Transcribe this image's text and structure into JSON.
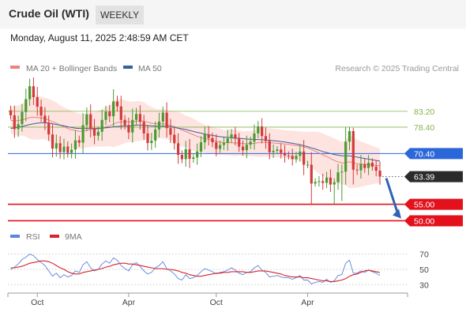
{
  "header": {
    "title": "Crude Oil (WTI)",
    "timeframe": "WEEKLY",
    "timestamp": "Monday, August 11, 2025 2:48:59 AM CET"
  },
  "colors": {
    "bullish": "#4a9a33",
    "bearish": "#d23a3a",
    "band_fill": "#fde4e0",
    "ma20": "#f08080",
    "ma50": "#3a5f9e",
    "current_line": "#2b67d9",
    "support": "#e3111b",
    "resistance": "#86b24a",
    "arrow": "#2f64b5",
    "rsi": "#5b84e0",
    "rsi_ma": "#d6252b"
  },
  "chart_data": [
    {
      "type": "candlestick",
      "title": "Crude Oil (WTI)",
      "timeframe": "WEEKLY",
      "credit": "Research © 2025 Trading Central",
      "x_tick_labels": [
        "Oct",
        "Apr",
        "Oct",
        "Apr"
      ],
      "y_range": [
        47,
        93
      ],
      "legend": [
        {
          "label": "MA 20 + Bollinger Bands",
          "color": "#f08080"
        },
        {
          "label": "MA 50",
          "color": "#3a5f9e"
        }
      ],
      "levels": [
        {
          "label": "83.20",
          "value": 83.2,
          "kind": "resistance"
        },
        {
          "label": "78.40",
          "value": 78.4,
          "kind": "resistance"
        },
        {
          "label": "70.40",
          "value": 70.4,
          "kind": "pivot"
        },
        {
          "label": "63.39",
          "value": 63.39,
          "kind": "current"
        },
        {
          "label": "55.00",
          "value": 55.0,
          "kind": "support"
        },
        {
          "label": "50.00",
          "value": 50.0,
          "kind": "support"
        }
      ],
      "close": [
        82.0,
        77.8,
        79.3,
        83.0,
        86.9,
        90.8,
        87.5,
        84.6,
        81.9,
        79.8,
        76.2,
        71.9,
        73.5,
        70.8,
        72.5,
        70.6,
        71.6,
        74.4,
        73.7,
        79.0,
        82.3,
        78.0,
        75.8,
        77.0,
        80.6,
        83.1,
        81.7,
        86.2,
        84.7,
        80.6,
        79.0,
        76.8,
        80.6,
        82.4,
        80.0,
        76.5,
        73.6,
        74.3,
        77.7,
        80.1,
        82.8,
        78.1,
        76.1,
        73.5,
        70.0,
        68.7,
        71.7,
        68.8,
        69.2,
        71.0,
        73.8,
        76.2,
        75.1,
        73.8,
        71.8,
        73.0,
        73.6,
        75.0,
        76.2,
        74.9,
        72.5,
        71.4,
        73.1,
        74.0,
        76.5,
        78.6,
        75.7,
        74.2,
        70.8,
        71.2,
        71.6,
        70.6,
        69.8,
        69.7,
        68.7,
        69.7,
        71.0,
        67.0,
        67.0,
        61.3,
        61.8,
        62.0,
        61.5,
        63.1,
        61.0,
        61.7,
        64.7,
        64.9,
        74.0,
        77.2,
        65.5,
        65.3,
        67.2,
        66.0,
        67.6,
        66.4,
        65.2,
        63.4
      ],
      "ma20": [
        80.5,
        80.3,
        80.4,
        80.6,
        80.9,
        81.3,
        81.4,
        81.3,
        81.2,
        81.0,
        80.6,
        80.0,
        79.6,
        79.0,
        78.5,
        78.0,
        77.6,
        77.4,
        77.1,
        77.2,
        77.4,
        77.6,
        77.7,
        77.9,
        78.2,
        78.5,
        78.8,
        79.3,
        79.8,
        80.0,
        80.1,
        80.0,
        80.0,
        80.2,
        80.3,
        80.2,
        79.9,
        79.6,
        79.4,
        79.4,
        79.4,
        79.2,
        78.9,
        78.6,
        78.1,
        77.5,
        77.1,
        76.6,
        76.1,
        75.6,
        75.2,
        74.9,
        74.7,
        74.4,
        74.1,
        73.9,
        73.7,
        73.7,
        73.7,
        73.6,
        73.5,
        73.4,
        73.4,
        73.4,
        73.5,
        73.7,
        73.8,
        73.8,
        73.7,
        73.6,
        73.5,
        73.4,
        73.3,
        73.2,
        73.0,
        72.8,
        72.7,
        72.4,
        72.1,
        71.6,
        71.1,
        70.6,
        70.0,
        69.5,
        68.9,
        68.3,
        67.9,
        67.5,
        67.6,
        67.9,
        67.6,
        67.3,
        67.2,
        67.1,
        67.0,
        66.9,
        66.8,
        66.7
      ],
      "ma50": [
        78.0,
        78.2,
        78.4,
        78.6,
        78.9,
        79.2,
        79.4,
        79.6,
        79.7,
        79.7,
        79.6,
        79.4,
        79.2,
        79.0,
        78.8,
        78.5,
        78.3,
        78.1,
        78.0,
        78.0,
        78.0,
        78.0,
        78.0,
        78.0,
        78.1,
        78.2,
        78.3,
        78.5,
        78.6,
        78.7,
        78.8,
        78.8,
        78.9,
        79.0,
        79.0,
        79.0,
        78.9,
        78.8,
        78.7,
        78.7,
        78.7,
        78.6,
        78.5,
        78.3,
        78.1,
        77.9,
        77.7,
        77.4,
        77.1,
        76.8,
        76.6,
        76.3,
        76.1,
        75.9,
        75.7,
        75.5,
        75.4,
        75.3,
        75.2,
        75.1,
        75.0,
        74.9,
        74.8,
        74.7,
        74.7,
        74.6,
        74.6,
        74.5,
        74.4,
        74.3,
        74.2,
        74.0,
        73.9,
        73.7,
        73.5,
        73.3,
        73.1,
        72.8,
        72.5,
        72.1,
        71.8,
        71.4,
        71.0,
        70.7,
        70.4,
        70.1,
        69.9,
        69.7,
        69.7,
        69.7,
        69.5,
        69.3,
        69.1,
        68.9,
        68.7,
        68.5,
        68.3,
        68.1
      ],
      "upper_band": [
        84.5,
        84.6,
        85.0,
        85.4,
        86.3,
        87.8,
        88.2,
        88.0,
        87.6,
        87.3,
        87.0,
        86.5,
        85.9,
        85.0,
        84.4,
        83.9,
        83.4,
        82.9,
        82.5,
        82.4,
        82.6,
        82.8,
        82.9,
        83.3,
        83.9,
        84.5,
        85.0,
        86.3,
        86.9,
        86.9,
        86.6,
        86.2,
        86.1,
        86.3,
        86.3,
        86.0,
        85.2,
        84.5,
        84.0,
        83.8,
        83.8,
        83.6,
        83.4,
        83.2,
        83.0,
        82.5,
        81.9,
        81.5,
        81.0,
        80.3,
        79.6,
        79.1,
        78.9,
        78.5,
        78.1,
        77.9,
        77.5,
        77.5,
        77.7,
        77.6,
        77.3,
        77.1,
        77.2,
        77.2,
        77.5,
        78.1,
        78.2,
        78.1,
        78.0,
        77.9,
        77.8,
        77.6,
        77.5,
        77.4,
        77.3,
        77.2,
        77.1,
        77.0,
        77.0,
        77.0,
        77.0,
        76.9,
        76.5,
        76.0,
        75.5,
        75.0,
        74.5,
        73.9,
        74.5,
        75.9,
        75.2,
        74.6,
        74.1,
        73.6,
        73.2,
        72.7,
        72.3,
        71.9
      ],
      "lower_band": [
        76.5,
        76.0,
        75.8,
        75.8,
        75.5,
        74.8,
        74.6,
        74.6,
        74.8,
        74.7,
        74.2,
        73.5,
        73.3,
        73.0,
        72.6,
        72.1,
        71.8,
        71.9,
        71.7,
        72.0,
        72.2,
        72.4,
        72.5,
        72.5,
        72.5,
        72.5,
        72.6,
        72.3,
        72.7,
        73.1,
        73.6,
        73.8,
        73.9,
        74.1,
        74.3,
        74.4,
        74.6,
        74.7,
        74.8,
        75.0,
        75.0,
        74.8,
        74.4,
        74.0,
        73.2,
        72.5,
        72.3,
        71.7,
        71.2,
        70.9,
        70.8,
        70.7,
        70.5,
        70.3,
        70.1,
        69.9,
        69.9,
        69.9,
        69.7,
        69.6,
        69.7,
        69.7,
        69.6,
        69.6,
        69.5,
        69.3,
        69.4,
        69.5,
        69.4,
        69.3,
        69.2,
        69.2,
        69.1,
        69.0,
        68.7,
        68.4,
        68.3,
        67.8,
        67.2,
        66.2,
        65.2,
        64.3,
        63.5,
        63.0,
        62.3,
        61.6,
        61.3,
        61.1,
        60.7,
        59.9,
        60.0,
        60.0,
        60.3,
        60.6,
        60.8,
        61.1,
        61.3,
        61.5
      ]
    },
    {
      "type": "line",
      "title": "RSI",
      "legend": [
        {
          "label": "RSI",
          "color": "#5b84e0"
        },
        {
          "label": "9MA",
          "color": "#d6252b"
        }
      ],
      "y_ticks": [
        "70",
        "50",
        "30"
      ],
      "y_range": [
        22,
        80
      ],
      "series": [
        {
          "name": "RSI",
          "values": [
            50,
            53,
            57,
            63,
            66,
            70,
            68,
            63,
            59,
            55,
            48,
            41,
            45,
            39,
            43,
            40,
            42,
            48,
            46,
            56,
            60,
            52,
            48,
            50,
            57,
            61,
            58,
            65,
            62,
            55,
            51,
            48,
            56,
            59,
            54,
            48,
            44,
            46,
            52,
            55,
            60,
            51,
            48,
            44,
            38,
            36,
            43,
            38,
            39,
            42,
            47,
            51,
            49,
            47,
            44,
            46,
            47,
            49,
            52,
            49,
            45,
            43,
            46,
            47,
            52,
            55,
            49,
            46,
            40,
            41,
            42,
            40,
            39,
            39,
            37,
            39,
            42,
            36,
            36,
            31,
            33,
            34,
            33,
            37,
            33,
            35,
            42,
            43,
            58,
            62,
            45,
            45,
            48,
            46,
            49,
            47,
            45,
            42
          ]
        },
        {
          "name": "9MA",
          "values": [
            52,
            52,
            53,
            54,
            56,
            58,
            59,
            60,
            61,
            61,
            60,
            58,
            55,
            52,
            50,
            47,
            45,
            44,
            44,
            46,
            47,
            48,
            49,
            50,
            51,
            53,
            54,
            56,
            57,
            58,
            58,
            57,
            57,
            56,
            55,
            54,
            53,
            52,
            51,
            51,
            51,
            50,
            50,
            49,
            48,
            46,
            45,
            43,
            42,
            41,
            41,
            42,
            43,
            44,
            45,
            45,
            46,
            46,
            47,
            47,
            47,
            47,
            46,
            46,
            47,
            48,
            48,
            48,
            47,
            46,
            45,
            44,
            42,
            41,
            40,
            40,
            40,
            39,
            39,
            38,
            37,
            36,
            35,
            35,
            34,
            34,
            35,
            36,
            38,
            41,
            43,
            44,
            46,
            48,
            49,
            48,
            47,
            46
          ]
        }
      ]
    }
  ]
}
